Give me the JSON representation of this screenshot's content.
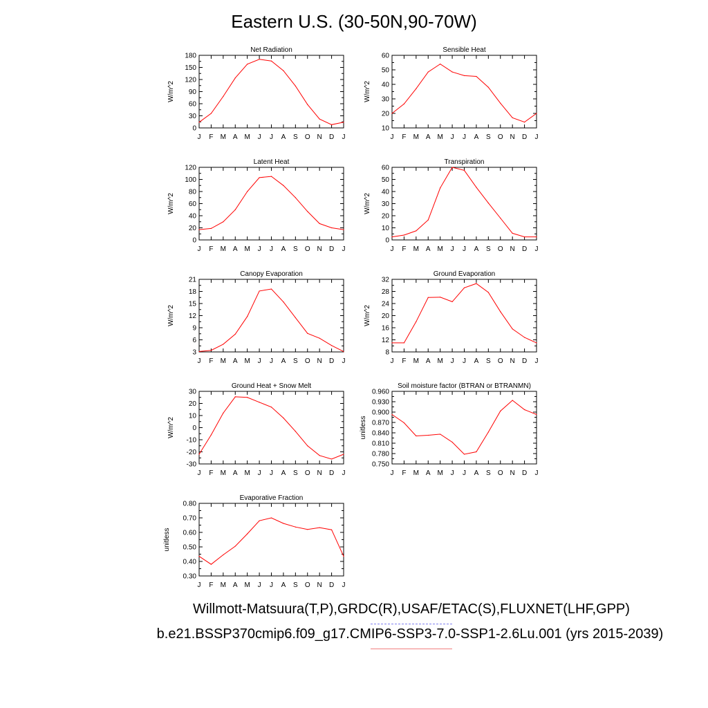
{
  "title": "Eastern U.S. (30-50N,90-70W)",
  "footer": {
    "line1": "Willmott-Matsuura(T,P),GRDC(R),USAF/ETAC(S),FLUXNET(LHF,GPP)",
    "line2": "b.e21.BSSP370cmip6.f09_g17.CMIP6-SSP3-7.0-SSP1-2.6Lu.001 (yrs 2015-2039)"
  },
  "colors": {
    "series": "#ff0000",
    "legend_obs": "#7e7ef0",
    "legend_model": "#f07e7e"
  },
  "chart_data": [
    {
      "type": "line",
      "title": "Net Radiation",
      "ylabel": "W/m^2",
      "categories": [
        "J",
        "F",
        "M",
        "A",
        "M",
        "J",
        "J",
        "A",
        "S",
        "O",
        "N",
        "D",
        "J"
      ],
      "ylim": [
        0,
        180
      ],
      "yticks": [
        "0",
        "30",
        "60",
        "90",
        "120",
        "150",
        "180"
      ],
      "values": [
        14,
        36,
        78,
        124,
        158,
        170,
        166,
        142,
        104,
        58,
        22,
        8,
        14
      ]
    },
    {
      "type": "line",
      "title": "Sensible Heat",
      "ylabel": "W/m^2",
      "categories": [
        "J",
        "F",
        "M",
        "A",
        "M",
        "J",
        "J",
        "A",
        "S",
        "O",
        "N",
        "D",
        "J"
      ],
      "ylim": [
        10,
        60
      ],
      "yticks": [
        "10",
        "20",
        "30",
        "40",
        "50",
        "60"
      ],
      "values": [
        20,
        26.5,
        37,
        48.5,
        54,
        48.5,
        46,
        45.5,
        38,
        27,
        17,
        14,
        20
      ]
    },
    {
      "type": "line",
      "title": "Latent Heat",
      "ylabel": "W/m^2",
      "categories": [
        "J",
        "F",
        "M",
        "A",
        "M",
        "J",
        "J",
        "A",
        "S",
        "O",
        "N",
        "D",
        "J"
      ],
      "ylim": [
        0,
        120
      ],
      "yticks": [
        "0",
        "20",
        "40",
        "60",
        "80",
        "100",
        "120"
      ],
      "values": [
        17,
        19,
        30,
        50,
        80,
        103,
        105,
        90,
        70,
        47,
        27,
        20,
        17
      ]
    },
    {
      "type": "line",
      "title": "Transpiration",
      "ylabel": "W/m^2",
      "categories": [
        "J",
        "F",
        "M",
        "A",
        "M",
        "J",
        "J",
        "A",
        "S",
        "O",
        "N",
        "D",
        "J"
      ],
      "ylim": [
        0,
        60
      ],
      "yticks": [
        "0",
        "10",
        "20",
        "30",
        "40",
        "50",
        "60"
      ],
      "values": [
        2.5,
        4,
        7.5,
        16.5,
        43,
        60,
        57.5,
        43.5,
        30.5,
        18,
        5.5,
        2.5,
        2.5
      ]
    },
    {
      "type": "line",
      "title": "Canopy Evaporation",
      "ylabel": "W/m^2",
      "categories": [
        "J",
        "F",
        "M",
        "A",
        "M",
        "J",
        "J",
        "A",
        "S",
        "O",
        "N",
        "D",
        "J"
      ],
      "ylim": [
        3,
        21
      ],
      "yticks": [
        "3",
        "6",
        "9",
        "12",
        "15",
        "18",
        "21"
      ],
      "values": [
        3.1,
        3.4,
        4.9,
        7.4,
        11.8,
        18.1,
        18.6,
        15.4,
        11.5,
        7.6,
        6.4,
        4.6,
        3.1
      ]
    },
    {
      "type": "line",
      "title": "Ground Evaporation",
      "ylabel": "W/m^2",
      "categories": [
        "J",
        "F",
        "M",
        "A",
        "M",
        "J",
        "J",
        "A",
        "S",
        "O",
        "N",
        "D",
        "J"
      ],
      "ylim": [
        8,
        32
      ],
      "yticks": [
        "8",
        "12",
        "16",
        "20",
        "24",
        "28",
        "32"
      ],
      "values": [
        11,
        11,
        18,
        26,
        26.1,
        24.6,
        29.2,
        30.6,
        27.7,
        21.3,
        15.6,
        12.8,
        11
      ]
    },
    {
      "type": "line",
      "title": "Ground Heat + Snow Melt",
      "ylabel": "W/m^2",
      "categories": [
        "J",
        "F",
        "M",
        "A",
        "M",
        "J",
        "J",
        "A",
        "S",
        "O",
        "N",
        "D",
        "J"
      ],
      "ylim": [
        -30,
        30
      ],
      "yticks": [
        "-30",
        "-20",
        "-10",
        "0",
        "10",
        "20",
        "30"
      ],
      "values": [
        -22,
        -6,
        12,
        25.5,
        25,
        21,
        17,
        8,
        -3,
        -15,
        -23,
        -26,
        -22
      ]
    },
    {
      "type": "line",
      "title": "Soil moisture factor (BTRAN or BTRANMN)",
      "ylabel": "unitless",
      "categories": [
        "J",
        "F",
        "M",
        "A",
        "M",
        "J",
        "J",
        "A",
        "S",
        "O",
        "N",
        "D",
        "J"
      ],
      "ylim": [
        0.75,
        0.96
      ],
      "yticks": [
        "0.750",
        "0.780",
        "0.810",
        "0.840",
        "0.870",
        "0.900",
        "0.930",
        "0.960"
      ],
      "values": [
        0.893,
        0.869,
        0.831,
        0.833,
        0.836,
        0.813,
        0.778,
        0.785,
        0.842,
        0.903,
        0.934,
        0.907,
        0.893
      ]
    },
    {
      "type": "line",
      "title": "Evaporative Fraction",
      "ylabel": "unitless",
      "categories": [
        "J",
        "F",
        "M",
        "A",
        "M",
        "J",
        "J",
        "A",
        "S",
        "O",
        "N",
        "D",
        "J"
      ],
      "ylim": [
        0.3,
        0.8
      ],
      "yticks": [
        "0.30",
        "0.40",
        "0.50",
        "0.60",
        "0.70",
        "0.80"
      ],
      "values": [
        0.435,
        0.38,
        0.445,
        0.505,
        0.59,
        0.68,
        0.7,
        0.662,
        0.637,
        0.62,
        0.633,
        0.618,
        0.435
      ]
    }
  ]
}
